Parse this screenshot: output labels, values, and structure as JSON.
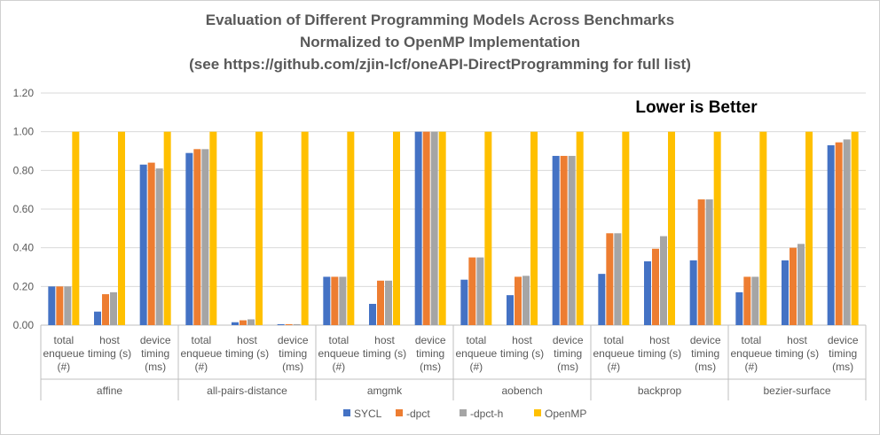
{
  "chart_data": {
    "type": "bar",
    "title_lines": [
      "Evaluation of Different Programming Models Across Benchmarks",
      "Normalized to OpenMP Implementation",
      "(see https://github.com/zjin-lcf/oneAPI-DirectProgramming for full list)"
    ],
    "annotation": "Lower is Better",
    "ylim": [
      0,
      1.2
    ],
    "yticks": [
      "0.00",
      "0.20",
      "0.40",
      "0.60",
      "0.80",
      "1.00",
      "1.20"
    ],
    "groups": [
      "affine",
      "all-pairs-distance",
      "amgmk",
      "aobench",
      "backprop",
      "bezier-surface"
    ],
    "subcategories": [
      [
        "total",
        "enqueue",
        "(#)"
      ],
      [
        "host",
        "timing (s)"
      ],
      [
        "device",
        "timing",
        "(ms)"
      ]
    ],
    "series": [
      {
        "name": "SYCL",
        "color": "#4472C4",
        "values": [
          0.2,
          0.07,
          0.83,
          0.89,
          0.015,
          0.005,
          0.25,
          0.11,
          1.0,
          0.235,
          0.155,
          0.875,
          0.265,
          0.33,
          0.335,
          0.17,
          0.335,
          0.93
        ]
      },
      {
        "name": "-dpct",
        "color": "#ED7D31",
        "values": [
          0.2,
          0.16,
          0.84,
          0.91,
          0.025,
          0.005,
          0.25,
          0.23,
          1.0,
          0.35,
          0.25,
          0.875,
          0.475,
          0.395,
          0.65,
          0.25,
          0.4,
          0.945
        ]
      },
      {
        "name": "-dpct-h",
        "color": "#A5A5A5",
        "values": [
          0.2,
          0.17,
          0.81,
          0.91,
          0.03,
          0.005,
          0.25,
          0.23,
          1.0,
          0.35,
          0.255,
          0.875,
          0.475,
          0.46,
          0.65,
          0.25,
          0.42,
          0.96
        ]
      },
      {
        "name": "OpenMP",
        "color": "#FFC000",
        "values": [
          1,
          1,
          1,
          1,
          1,
          1,
          1,
          1,
          1,
          1,
          1,
          1,
          1,
          1,
          1,
          1,
          1,
          1
        ]
      }
    ],
    "legend_position": "bottom",
    "grid": true
  }
}
